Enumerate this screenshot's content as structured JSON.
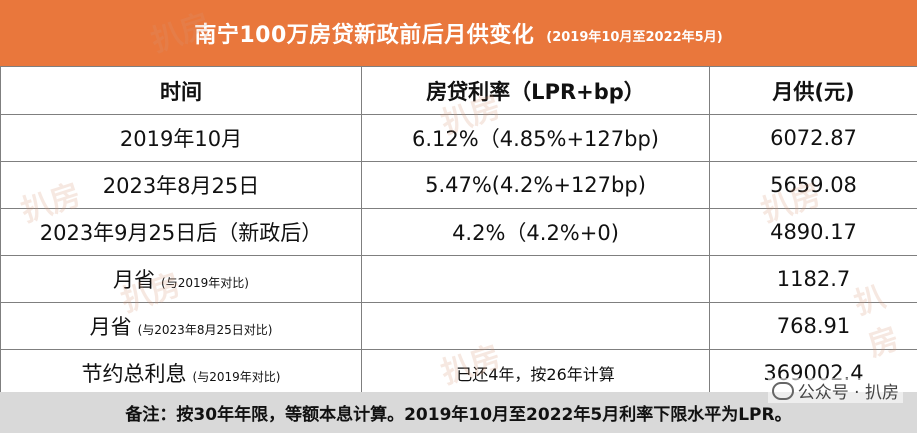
{
  "header": {
    "title": "南宁100万房贷新政前后月供变化",
    "subtitle": "(2019年10月至2022年5月)"
  },
  "table": {
    "columns": [
      "时间",
      "房贷利率（LPR+bp）",
      "月供(元)"
    ],
    "rows": [
      {
        "time": "2019年10月",
        "note": "",
        "rate": "6.12%（4.85%+127bp)",
        "payment": "6072.87"
      },
      {
        "time": "2023年8月25日",
        "note": "",
        "rate": "5.47%(4.2%+127bp)",
        "payment": "5659.08"
      },
      {
        "time": "2023年9月25日后（新政后）",
        "note": "",
        "rate": "4.2%（4.2%+0)",
        "payment": "4890.17"
      },
      {
        "time": "月省",
        "note": "(与2019年对比)",
        "rate": "",
        "payment": "1182.7"
      },
      {
        "time": "月省",
        "note": "(与2023年8月25日对比)",
        "rate": "",
        "payment": "768.91"
      },
      {
        "time": "节约总利息",
        "note": "(与2019年对比)",
        "rate": "已还4年，按26年计算",
        "payment": "369002.4"
      }
    ]
  },
  "footer": {
    "text": "备注：按30年年限，等额本息计算。2019年10月至2022年5月利率下限水平为LPR。"
  },
  "watermark": {
    "text": "扒房",
    "account": "公众号 · 扒房"
  },
  "colors": {
    "banner": "#e9773c",
    "footer": "#d9d9d9",
    "border": "#7f7f7f"
  }
}
